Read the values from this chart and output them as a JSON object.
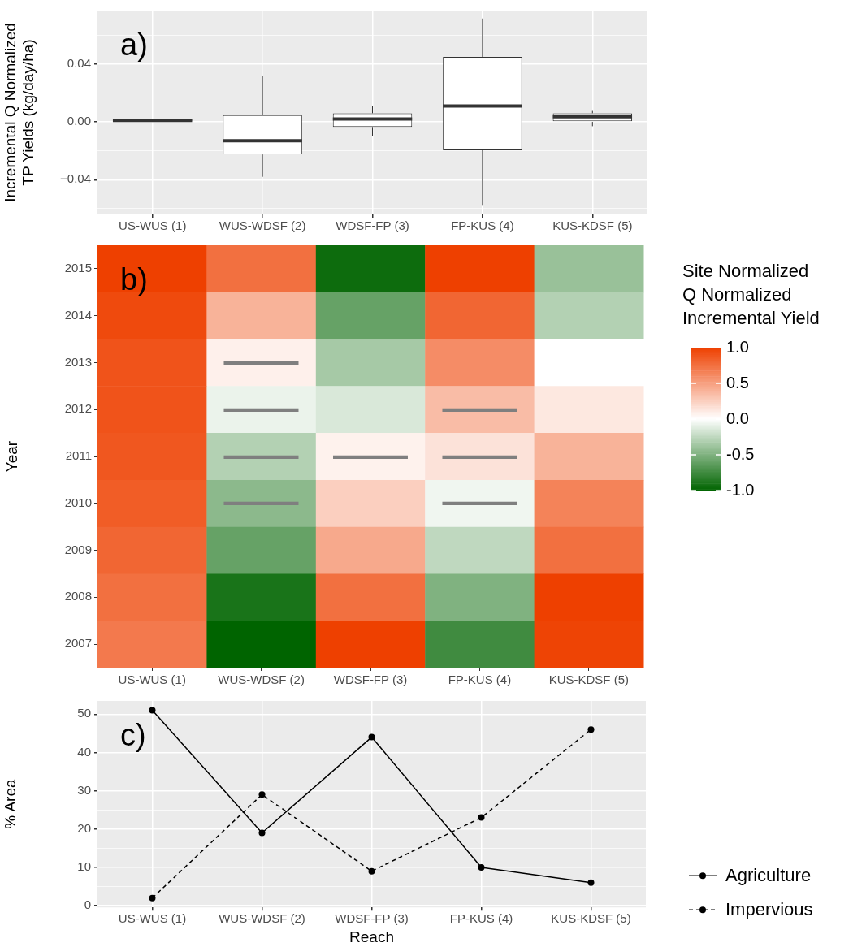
{
  "chart_data": [
    {
      "type": "box",
      "ylabel": "Incremental Q Normalized\nTP Yields (kg/day/ha)",
      "annotations": [
        "a)"
      ],
      "categories": [
        "US-WUS (1)",
        "WUS-WDSF (2)",
        "WDSF-FP (3)",
        "FP-KUS (4)",
        "KUS-KDSF (5)"
      ],
      "boxes": [
        {
          "low": 0.0005,
          "q1": 0.0005,
          "median": 0.001,
          "q3": 0.002,
          "high": 0.002
        },
        {
          "low": -0.038,
          "q1": -0.0225,
          "median": -0.013,
          "q3": 0.0047,
          "high": 0.032
        },
        {
          "low": -0.0096,
          "q1": -0.0035,
          "median": 0.002,
          "q3": 0.006,
          "high": 0.011
        },
        {
          "low": -0.058,
          "q1": -0.0196,
          "median": 0.011,
          "q3": 0.045,
          "high": 0.0715
        },
        {
          "low": -0.003,
          "q1": 0,
          "median": 0.0035,
          "q3": 0.006,
          "high": 0.0076
        }
      ],
      "ylim": [
        -0.064,
        0.077
      ],
      "yticks": [
        {
          "value": -0.06,
          "label": null
        },
        {
          "value": -0.04,
          "label": "−0.04"
        },
        {
          "value": -0.02,
          "label": null
        },
        {
          "value": 0,
          "label": "0.00"
        },
        {
          "value": 0.02,
          "label": null
        },
        0.04,
        {
          "value": 0.06,
          "label": null
        }
      ],
      "grid": true
    },
    {
      "type": "heatmap",
      "ylabel": "Year",
      "clabel": "Site Normalized\nQ Normalized\nIncremental Yield",
      "annotations": [
        "b)"
      ],
      "categories": [
        "US-WUS (1)",
        "WUS-WDSF (2)",
        "WDSF-FP (3)",
        "FP-KUS (4)",
        "KUS-KDSF (5)"
      ],
      "y_categories": [
        "2015",
        "2014",
        "2013",
        "2012",
        "2011",
        "2010",
        "2009",
        "2008",
        "2007"
      ],
      "cells": [
        [
          1.0,
          0.75,
          -0.95,
          1.0,
          -0.4
        ],
        [
          0.95,
          0.4,
          -0.6,
          0.8,
          -0.3
        ],
        [
          0.9,
          0.08,
          -0.35,
          0.6,
          0.0
        ],
        [
          0.9,
          -0.08,
          -0.15,
          0.35,
          0.12
        ],
        [
          0.88,
          -0.3,
          0.07,
          0.15,
          0.4
        ],
        [
          0.85,
          -0.45,
          0.25,
          -0.06,
          0.65
        ],
        [
          0.8,
          -0.6,
          0.45,
          -0.25,
          0.75
        ],
        [
          0.75,
          -0.9,
          0.75,
          -0.5,
          1.0
        ],
        [
          0.7,
          -1.0,
          1.0,
          -0.75,
          0.98
        ]
      ],
      "cell_labels": [
        [
          null,
          null,
          null,
          null,
          null
        ],
        [
          null,
          null,
          null,
          null,
          null
        ],
        [
          null,
          "—",
          null,
          null,
          null
        ],
        [
          null,
          "—",
          null,
          "—",
          null
        ],
        [
          null,
          "—",
          "—",
          "—",
          null
        ],
        [
          null,
          "—",
          null,
          "—",
          null
        ],
        [
          null,
          null,
          null,
          null,
          null
        ],
        [
          null,
          null,
          null,
          null,
          null
        ],
        [
          null,
          null,
          null,
          null,
          null
        ]
      ],
      "clim": [
        -1,
        1
      ],
      "cticks": [
        {
          "value": 1,
          "label": "1.0"
        },
        {
          "value": 0.5,
          "label": "0.5"
        },
        {
          "value": 0,
          "label": "0.0"
        },
        {
          "value": -0.5,
          "label": "-0.5"
        },
        {
          "value": -1,
          "label": "-1.0"
        }
      ]
    },
    {
      "type": "line",
      "xlabel": "Reach",
      "ylabel": "% Area",
      "annotations": [
        "c)"
      ],
      "categories": [
        "US-WUS (1)",
        "WUS-WDSF (2)",
        "WDSF-FP (3)",
        "FP-KUS (4)",
        "KUS-KDSF (5)"
      ],
      "series": [
        {
          "name": "Agriculture",
          "color": "#000000",
          "values": [
            51,
            19,
            44,
            10,
            6
          ],
          "line_style": "solid"
        },
        {
          "name": "Impervious",
          "color": "#000000",
          "values": [
            2,
            29,
            9,
            23,
            46
          ],
          "line_style": "dashed"
        }
      ],
      "ylim": [
        -0.45,
        53.45
      ],
      "yticks": [
        0,
        {
          "value": 5,
          "label": null
        },
        10,
        {
          "value": 15,
          "label": null
        },
        20,
        {
          "value": 25,
          "label": null
        },
        30,
        {
          "value": 35,
          "label": null
        },
        40,
        {
          "value": 45,
          "label": null
        },
        50
      ],
      "grid": true,
      "legend": "bottom right",
      "marker": "circle"
    }
  ]
}
